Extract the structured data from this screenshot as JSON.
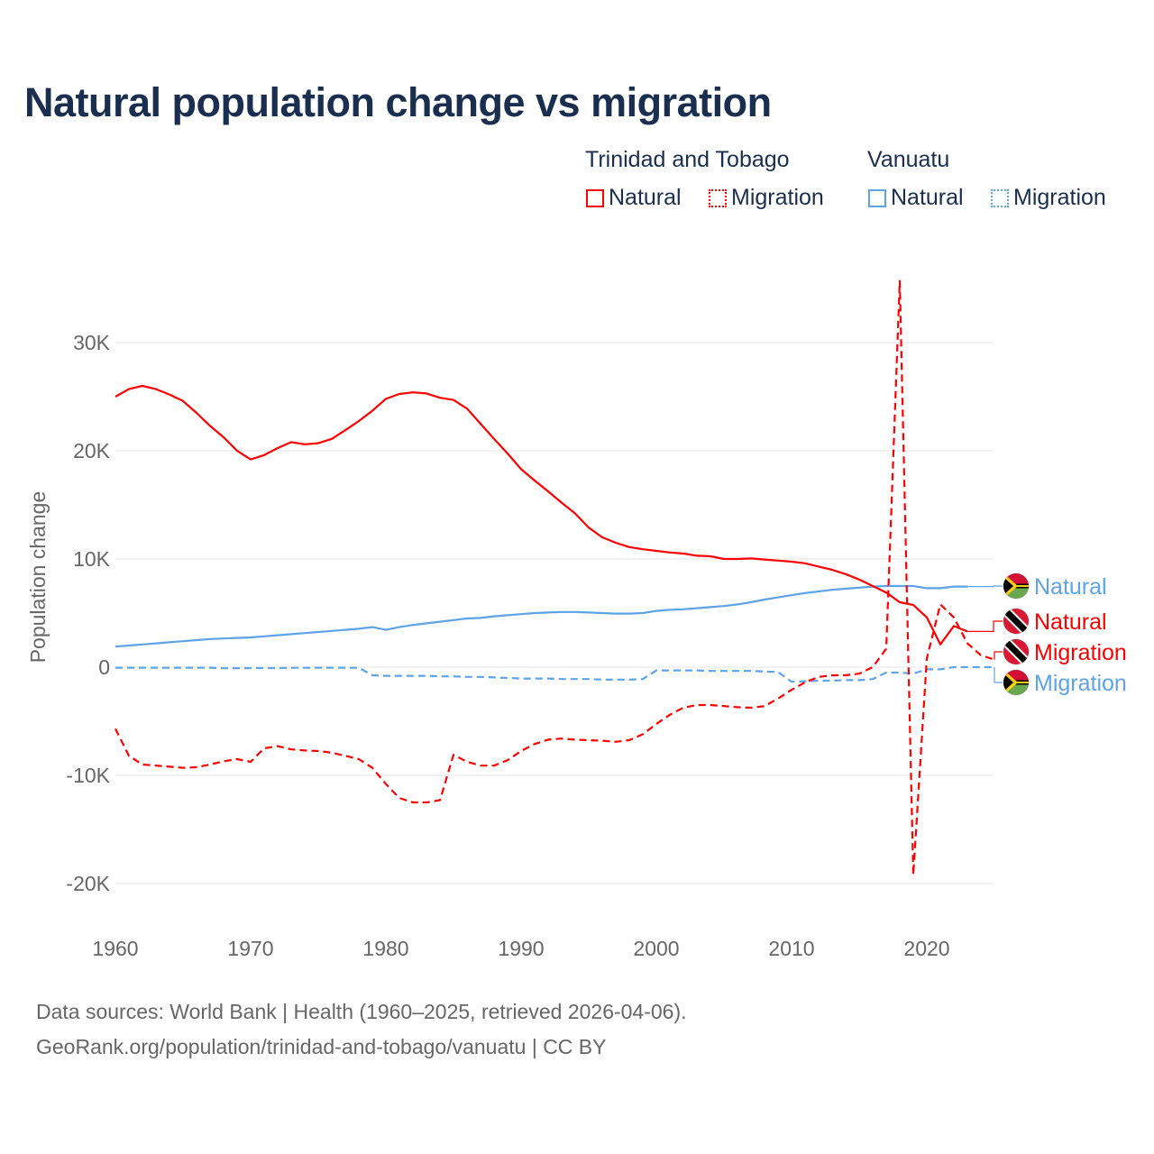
{
  "title": "Natural population change vs migration",
  "legend": {
    "groups": [
      {
        "name": "Trinidad and Tobago",
        "items": [
          "Natural",
          "Migration"
        ],
        "color": "#ff0000"
      },
      {
        "name": "Vanuatu",
        "items": [
          "Natural",
          "Migration"
        ],
        "color": "#5ca3e8"
      }
    ]
  },
  "footer": {
    "line1": "Data sources: World Bank | Health (1960–2025, retrieved 2026-04-06).",
    "line2": "GeoRank.org/population/trinidad-and-tobago/vanuatu | CC BY"
  },
  "chart_data": {
    "type": "line",
    "title": "Natural population change vs migration",
    "xlabel": "",
    "ylabel": "Population change",
    "xlim": [
      1960,
      2025
    ],
    "ylim": [
      -22000,
      37000
    ],
    "x_ticks": [
      1960,
      1970,
      1980,
      1990,
      2000,
      2010,
      2020
    ],
    "x_tick_labels": [
      "1960",
      "1970",
      "1980",
      "1990",
      "2000",
      "2010",
      "2020"
    ],
    "y_ticks": [
      -20000,
      -10000,
      0,
      10000,
      20000,
      30000
    ],
    "y_tick_labels": [
      "-20K",
      "-10K",
      "0",
      "10K",
      "20K",
      "30K"
    ],
    "grid": true,
    "legend_position": "top-right",
    "series": [
      {
        "name": "Trinidad and Tobago Natural",
        "label": "Natural",
        "color": "#ff0000",
        "dash": false,
        "flag": "trinidad",
        "start": 1960,
        "values": [
          25000,
          25700,
          26000,
          25700,
          25200,
          24600,
          23500,
          22300,
          21250,
          20000,
          19200,
          19600,
          20250,
          20800,
          20600,
          20700,
          21100,
          21900,
          22750,
          23700,
          24800,
          25250,
          25400,
          25300,
          24900,
          24700,
          23900,
          22500,
          21100,
          19750,
          18300,
          17250,
          16250,
          15200,
          14200,
          12900,
          12000,
          11500,
          11100,
          10900,
          10750,
          10600,
          10500,
          10300,
          10250,
          10000,
          10000,
          10050,
          9950,
          9850,
          9750,
          9600,
          9300,
          9000,
          8600,
          8100,
          7500,
          6900,
          6000,
          5750,
          4600,
          2100,
          3800,
          3300
        ]
      },
      {
        "name": "Trinidad and Tobago Migration",
        "label": "Migration",
        "color": "#ff0000",
        "dash": true,
        "flag": "trinidad",
        "start": 1960,
        "values": [
          -5700,
          -8200,
          -9000,
          -9100,
          -9200,
          -9300,
          -9250,
          -9000,
          -8700,
          -8500,
          -8750,
          -7500,
          -7300,
          -7600,
          -7700,
          -7750,
          -7900,
          -8200,
          -8500,
          -9300,
          -10800,
          -12100,
          -12500,
          -12500,
          -12300,
          -8100,
          -8750,
          -9100,
          -9100,
          -8600,
          -7750,
          -7100,
          -6700,
          -6600,
          -6700,
          -6750,
          -6800,
          -6900,
          -6750,
          -6200,
          -5250,
          -4400,
          -3750,
          -3500,
          -3500,
          -3600,
          -3700,
          -3750,
          -3600,
          -2900,
          -2100,
          -1400,
          -900,
          -750,
          -750,
          -600,
          0,
          1700,
          35700,
          -19200,
          800,
          5800,
          4600,
          2200,
          1100,
          700
        ]
      },
      {
        "name": "Vanuatu Natural",
        "label": "Natural",
        "color": "#5ca3e8",
        "dash": false,
        "flag": "vanuatu",
        "start": 1960,
        "values": [
          1900,
          2000,
          2100,
          2200,
          2300,
          2400,
          2500,
          2600,
          2650,
          2700,
          2750,
          2850,
          2950,
          3050,
          3150,
          3250,
          3350,
          3450,
          3550,
          3700,
          3450,
          3700,
          3900,
          4050,
          4200,
          4350,
          4500,
          4550,
          4700,
          4800,
          4900,
          5000,
          5050,
          5100,
          5100,
          5050,
          5000,
          4950,
          4950,
          5000,
          5200,
          5300,
          5350,
          5450,
          5550,
          5650,
          5800,
          6000,
          6250,
          6450,
          6650,
          6850,
          7000,
          7150,
          7250,
          7350,
          7450,
          7500,
          7500,
          7500,
          7300,
          7300,
          7450,
          7450
        ]
      },
      {
        "name": "Vanuatu Migration",
        "label": "Migration",
        "color": "#5ca3e8",
        "dash": true,
        "flag": "vanuatu",
        "start": 1960,
        "values": [
          -50,
          -50,
          -50,
          -50,
          -50,
          -50,
          -50,
          -50,
          -100,
          -100,
          -80,
          -80,
          -80,
          -60,
          -60,
          -50,
          -50,
          -50,
          -60,
          -750,
          -800,
          -800,
          -800,
          -800,
          -850,
          -850,
          -900,
          -900,
          -950,
          -1000,
          -1050,
          -1050,
          -1050,
          -1100,
          -1100,
          -1100,
          -1150,
          -1150,
          -1150,
          -1100,
          -300,
          -300,
          -300,
          -300,
          -350,
          -350,
          -350,
          -350,
          -400,
          -450,
          -1350,
          -1300,
          -1250,
          -1250,
          -1200,
          -1200,
          -1100,
          -500,
          -500,
          -600,
          -200,
          -200,
          0,
          0,
          0,
          0
        ]
      }
    ]
  }
}
